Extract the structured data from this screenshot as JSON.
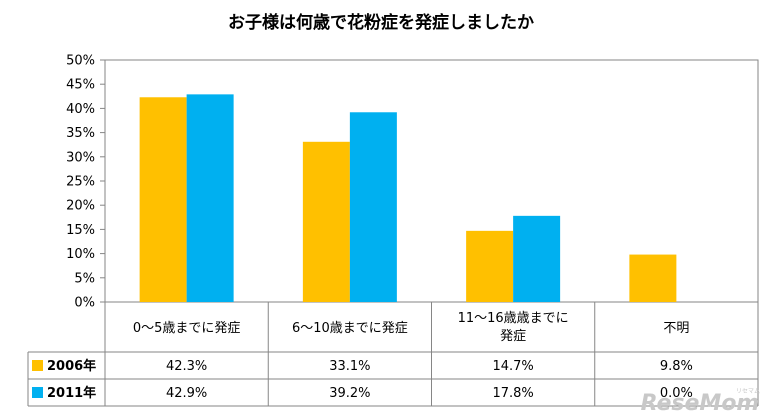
{
  "chart_data": {
    "type": "bar",
    "title": "お子様は何歳で花粉症を発症しましたか",
    "categories": [
      "0～5歳までに発症",
      "6～10歳までに発症",
      "11～16歳歳までに発症",
      "不明"
    ],
    "category_lines": [
      [
        "0～5歳までに発症"
      ],
      [
        "6～10歳までに発症"
      ],
      [
        "11～16歳歳までに",
        "発症"
      ],
      [
        "不明"
      ]
    ],
    "series": [
      {
        "name": "2006年",
        "values": [
          42.3,
          33.1,
          14.7,
          9.8
        ],
        "labels": [
          "42.3%",
          "33.1%",
          "14.7%",
          "9.8%"
        ],
        "color": "#FFC000"
      },
      {
        "name": "2011年",
        "values": [
          42.9,
          39.2,
          17.8,
          0.0
        ],
        "labels": [
          "42.9%",
          "39.2%",
          "17.8%",
          "0.0%"
        ],
        "color": "#00B0F0"
      }
    ],
    "ylim": [
      0,
      50
    ],
    "yticks": [
      "0%",
      "5%",
      "10%",
      "15%",
      "20%",
      "25%",
      "30%",
      "35%",
      "40%",
      "45%",
      "50%"
    ],
    "grid": false,
    "legend": "data-table"
  },
  "watermark": {
    "text": "ReseMom",
    "sub": "リセマム"
  }
}
